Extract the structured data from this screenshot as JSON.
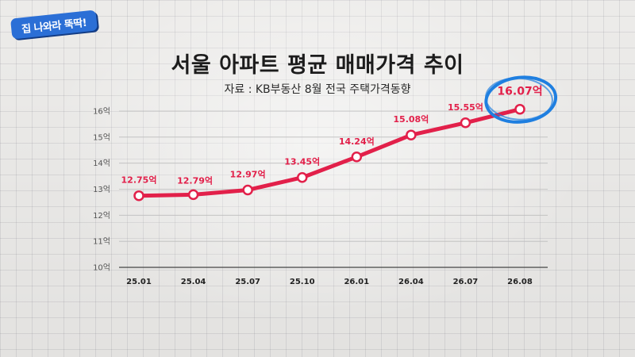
{
  "logo": {
    "text": "집 나와라 뚝딱!"
  },
  "colors": {
    "line": "#e2204a",
    "highlight_circle": "#1f7fe0",
    "logo_bg": "#2b6fd6"
  },
  "chart_data": {
    "type": "line",
    "title": "서울 아파트 평균 매매가격 추이",
    "subtitle": "자료 : KB부동산 8월 전국 주택가격동향",
    "categories": [
      "25.01",
      "25.04",
      "25.07",
      "25.10",
      "26.01",
      "26.04",
      "26.07",
      "26.08"
    ],
    "series": [
      {
        "values": [
          12.75,
          12.79,
          12.97,
          13.45,
          14.24,
          15.08,
          15.55,
          16.07
        ]
      }
    ],
    "data_labels": [
      "12.75억",
      "12.79억",
      "12.97억",
      "13.45억",
      "14.24억",
      "15.08억",
      "15.55억",
      "16.07억"
    ],
    "highlight_index": 7,
    "ylim": [
      10,
      16
    ],
    "yticks": [
      10,
      11,
      12,
      13,
      14,
      15,
      16
    ],
    "ytick_labels": [
      "10억",
      "11억",
      "12억",
      "13억",
      "14억",
      "15억",
      "16억"
    ],
    "grid": "horizontal",
    "xlabel": "",
    "ylabel": ""
  }
}
